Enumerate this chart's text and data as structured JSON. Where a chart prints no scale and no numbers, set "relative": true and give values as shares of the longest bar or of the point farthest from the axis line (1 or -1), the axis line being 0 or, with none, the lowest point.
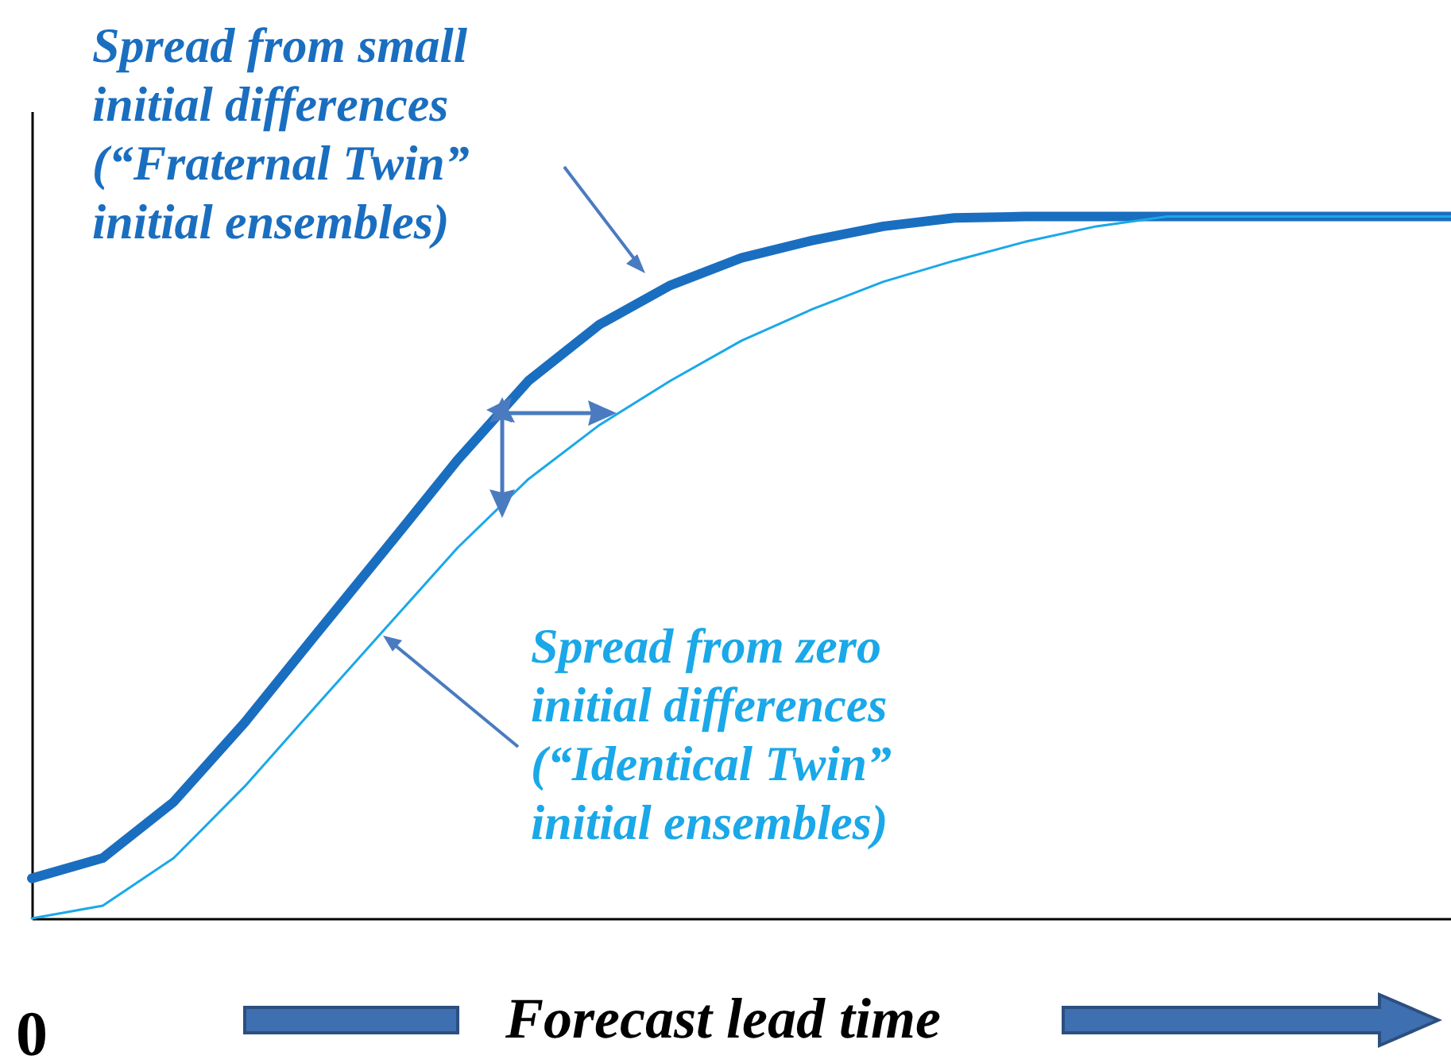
{
  "chart_data": {
    "type": "line",
    "relative": true,
    "xlabel": "Forecast lead time",
    "categories": [
      null,
      null,
      null,
      null,
      null,
      null,
      null,
      null,
      null,
      null,
      null,
      null,
      null,
      null,
      null,
      null,
      null,
      null,
      null,
      null,
      null
    ],
    "series": [
      {
        "color": "#1a6ec0",
        "values": [
          0.057,
          0.086,
          0.166,
          0.279,
          0.404,
          0.528,
          0.653,
          0.766,
          0.846,
          0.902,
          0.941,
          0.966,
          0.986,
          0.998,
          1,
          1,
          1,
          1,
          1,
          1,
          1
        ]
      },
      {
        "color": "#1aa8e8",
        "values": [
          0,
          0.018,
          0.086,
          0.188,
          0.302,
          0.415,
          0.528,
          0.626,
          0.703,
          0.766,
          0.823,
          0.868,
          0.907,
          0.937,
          0.964,
          0.986,
          1,
          1,
          1,
          1,
          1
        ]
      }
    ],
    "annotations": [
      "Spread from small initial differences (“Fraternal Twin” initial ensembles)",
      "Spread from zero initial differences (“Identical Twin” initial ensembles)",
      "0"
    ],
    "legend": false,
    "grid": false
  }
}
